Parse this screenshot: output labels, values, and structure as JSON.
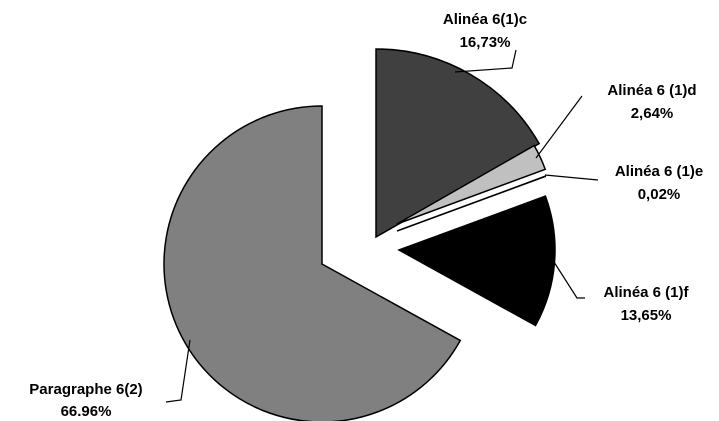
{
  "chart_data": {
    "type": "pie",
    "title": "",
    "exploded": true,
    "start_angle": "12 o'clock, clockwise",
    "legend": "none",
    "slices": [
      {
        "label": "Alinéa 6(1)c",
        "value": 16.73,
        "display": "16,73%",
        "color": "#404040"
      },
      {
        "label": "Alinéa 6 (1)d",
        "value": 2.64,
        "display": "2,64%",
        "color": "#c0c0c0"
      },
      {
        "label": "Alinéa 6 (1)e",
        "value": 0.02,
        "display": "0,02%",
        "color": "#e6e6e6"
      },
      {
        "label": "Alinéa 6 (1)f",
        "value": 13.65,
        "display": "13,65%",
        "color": "#000000"
      },
      {
        "label": "Paragraphe 6(2)",
        "value": 66.96,
        "display": "66.96%",
        "color": "#808080"
      }
    ]
  }
}
